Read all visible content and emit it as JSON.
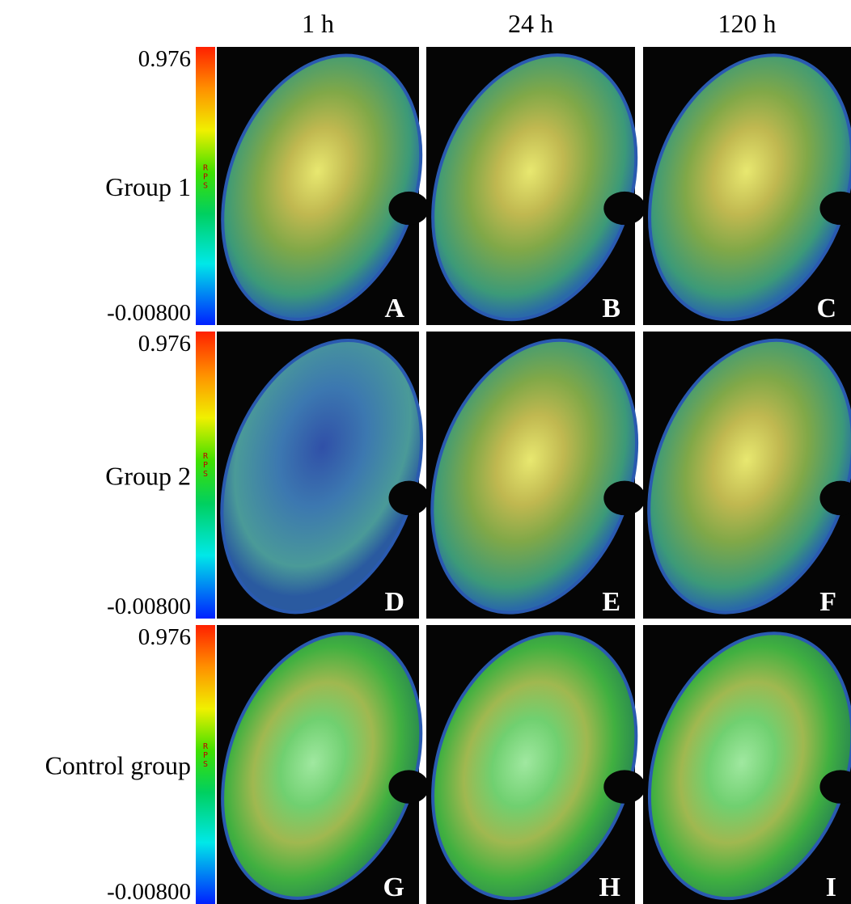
{
  "columns": [
    "1 h",
    "24 h",
    "120 h"
  ],
  "rows": [
    {
      "label": "Group 1",
      "scale_max": "0.976",
      "scale_min": "-0.00800",
      "scale_unit": "RPS",
      "panels": [
        "A",
        "B",
        "C"
      ]
    },
    {
      "label": "Group 2",
      "scale_max": "0.976",
      "scale_min": "-0.00800",
      "scale_unit": "RPS",
      "panels": [
        "D",
        "E",
        "F"
      ]
    },
    {
      "label": "Control group",
      "scale_max": "0.976",
      "scale_min": "-0.00800",
      "scale_unit": "RPS",
      "panels": [
        "G",
        "H",
        "I"
      ]
    }
  ]
}
